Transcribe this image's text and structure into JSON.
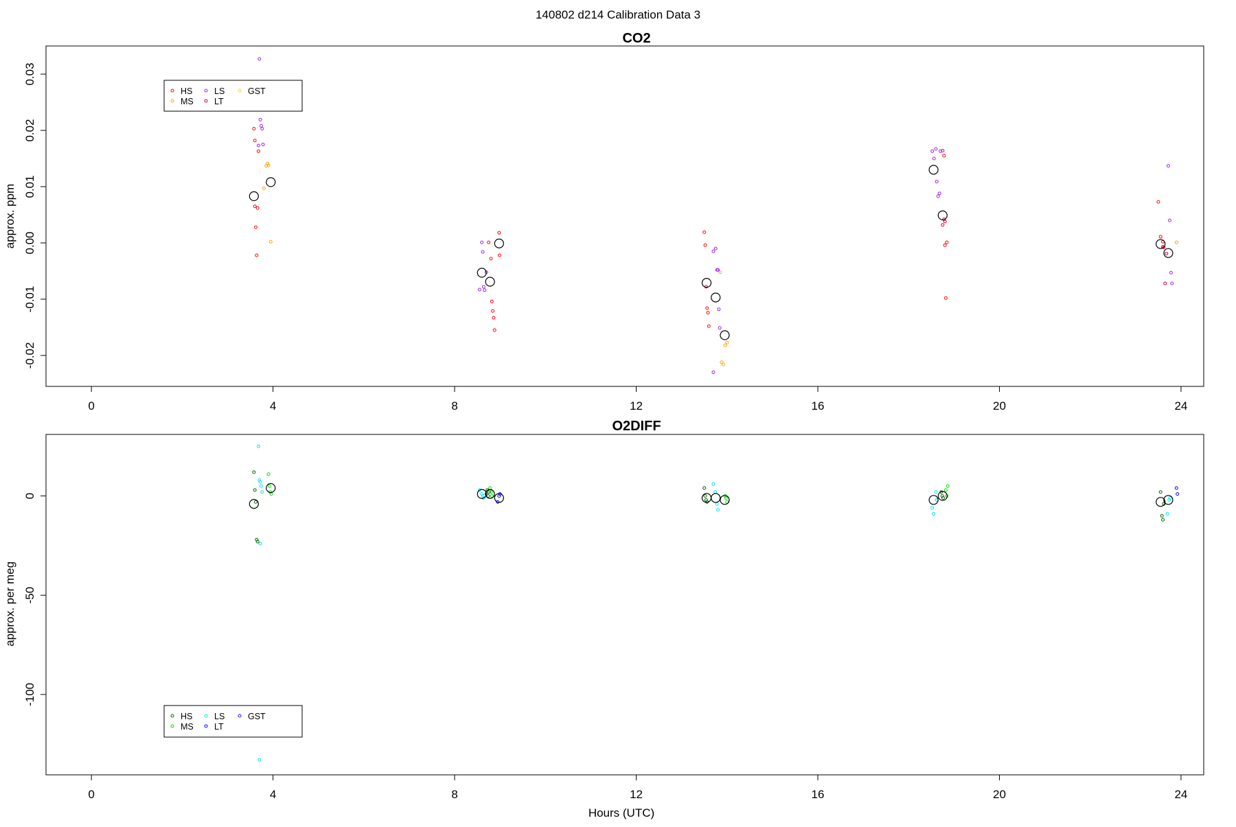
{
  "suptitle": "140802   d214   Calibration Data 3",
  "xlabel": "Hours (UTC)",
  "colors": {
    "co2": {
      "HS": "#ff0000",
      "MS": "#ffa500",
      "LS": "#a020f0",
      "LT": "#cc0033",
      "GST": "#ffd700",
      "mean": "#000000"
    },
    "o2": {
      "HS": "#006400",
      "MS": "#00dd00",
      "LS": "#00e5ee",
      "LT": "#0000ff",
      "GST": "#1a1aff",
      "mean": "#000000"
    }
  },
  "chart_data": [
    {
      "type": "scatter",
      "id": "co2",
      "title": "CO2",
      "ylabel": "approx. ppm",
      "xlim": [
        -1,
        24.5
      ],
      "ylim": [
        -0.0255,
        0.035
      ],
      "xticks": [
        "0",
        "4",
        "8",
        "12",
        "16",
        "20",
        "24"
      ],
      "yticks": [
        "-0.02",
        "-0.01",
        "0.00",
        "0.01",
        "0.02",
        "0.03"
      ],
      "legend": {
        "position": "top-left",
        "entries": [
          "HS",
          "MS",
          "LS",
          "LT",
          "GST"
        ]
      },
      "series": [
        {
          "name": "HS",
          "x": [
            3.58,
            3.6,
            3.62,
            3.64,
            3.66,
            3.68,
            3.6,
            8.75,
            8.8,
            8.82,
            8.84,
            8.86,
            8.88,
            8.98,
            8.99,
            13.5,
            13.52,
            13.54,
            13.56,
            13.58,
            13.6,
            18.75,
            18.78,
            18.8,
            18.82,
            18.84,
            23.5,
            23.55,
            23.6,
            23.62
          ],
          "y": [
            0.0203,
            0.0065,
            0.0028,
            -0.0022,
            0.0062,
            0.0163,
            0.0182,
            0.0001,
            -0.0028,
            -0.0104,
            -0.0121,
            -0.0133,
            -0.0155,
            0.0018,
            -0.0022,
            0.0019,
            -0.0004,
            -0.0078,
            -0.0116,
            -0.0124,
            -0.0148,
            0.0164,
            0.0155,
            -0.0004,
            -0.0098,
            0.0001,
            0.0073,
            0.0011,
            0.0002,
            -0.0008
          ]
        },
        {
          "name": "MS",
          "x": [
            3.8,
            3.85,
            3.88,
            3.9,
            3.95,
            13.85,
            13.88,
            13.92,
            13.96,
            14.0,
            23.9
          ],
          "y": [
            0.0097,
            0.0137,
            0.0141,
            0.0138,
            0.0002,
            -0.0052,
            -0.0212,
            -0.0216,
            -0.0182,
            -0.0177,
            0.0001
          ]
        },
        {
          "name": "LS",
          "x": [
            3.7,
            3.72,
            3.74,
            3.76,
            3.78,
            3.68,
            8.55,
            8.6,
            8.62,
            8.64,
            8.66,
            8.7,
            13.7,
            13.75,
            13.78,
            13.8,
            13.82,
            13.84,
            13.7,
            18.52,
            18.56,
            18.6,
            18.62,
            18.65,
            18.68,
            18.7,
            23.72,
            23.75,
            23.78,
            23.8
          ],
          "y": [
            0.0327,
            0.0219,
            0.0208,
            0.0203,
            0.0175,
            0.0173,
            -0.0083,
            0.0001,
            -0.0016,
            -0.0078,
            -0.0084,
            -0.0052,
            -0.0015,
            -0.001,
            -0.0048,
            -0.0048,
            -0.0118,
            -0.0151,
            -0.023,
            0.0163,
            0.015,
            0.0167,
            0.0109,
            0.0083,
            0.0088,
            0.0163,
            0.0137,
            0.004,
            -0.0053,
            -0.0072
          ]
        },
        {
          "name": "LT",
          "x": [
            18.75,
            18.78,
            18.8,
            23.6,
            23.65,
            23.68
          ],
          "y": [
            0.0032,
            0.0042,
            0.0038,
            -0.0007,
            -0.0072,
            -0.0019
          ]
        },
        {
          "name": "mean",
          "x": [
            3.58,
            3.95,
            8.6,
            8.78,
            8.98,
            13.55,
            13.75,
            13.95,
            18.55,
            18.75,
            23.55,
            23.72
          ],
          "y": [
            0.0083,
            0.0108,
            -0.0053,
            -0.0069,
            -0.0001,
            -0.0071,
            -0.0097,
            -0.0164,
            0.013,
            0.0049,
            -0.0002,
            -0.0018
          ]
        }
      ]
    },
    {
      "type": "scatter",
      "id": "o2",
      "title": "O2DIFF",
      "ylabel": "approx. per meg",
      "xlim": [
        -1,
        24.5
      ],
      "ylim": [
        -140.5,
        31
      ],
      "xticks": [
        "0",
        "4",
        "8",
        "12",
        "16",
        "20",
        "24"
      ],
      "yticks": [
        "-100",
        "-50",
        "0"
      ],
      "legend": {
        "position": "bottom-left",
        "entries": [
          "HS",
          "MS",
          "LS",
          "LT",
          "GST"
        ]
      },
      "series": [
        {
          "name": "HS",
          "x": [
            3.58,
            3.6,
            3.62,
            3.64,
            3.66,
            8.7,
            8.72,
            8.74,
            8.76,
            13.5,
            13.52,
            13.54,
            13.56,
            18.72,
            18.74,
            18.76,
            23.55,
            23.58,
            23.6,
            23.62
          ],
          "y": [
            12,
            3,
            -3,
            -22,
            -23,
            1,
            3,
            0,
            2,
            4,
            0,
            -2,
            -3,
            2,
            0,
            -1,
            2,
            -10,
            -12,
            -4
          ]
        },
        {
          "name": "MS",
          "x": [
            3.9,
            3.92,
            3.94,
            3.96,
            8.78,
            8.8,
            8.82,
            13.96,
            13.98,
            14.0,
            18.82,
            18.84,
            18.86
          ],
          "y": [
            11,
            5,
            2,
            1,
            4,
            2,
            0,
            0,
            -1,
            -3,
            3,
            0,
            5
          ]
        },
        {
          "name": "LS",
          "x": [
            3.68,
            3.7,
            3.72,
            3.74,
            3.76,
            3.72,
            3.7,
            8.55,
            8.6,
            8.62,
            8.64,
            13.7,
            13.74,
            13.78,
            13.8,
            18.52,
            18.55,
            18.6,
            18.62,
            23.7,
            23.74,
            23.76
          ],
          "y": [
            25,
            8,
            7,
            5,
            2,
            -24,
            -133,
            3,
            1,
            0,
            -1,
            6,
            2,
            -4,
            -7,
            -6,
            -9,
            2,
            -2,
            -9,
            -2,
            -1
          ]
        },
        {
          "name": "LT",
          "x": [
            8.95,
            8.98,
            9.0,
            23.9,
            23.92
          ],
          "y": [
            -3,
            0,
            1,
            4,
            1
          ]
        },
        {
          "name": "mean",
          "x": [
            3.58,
            3.95,
            8.6,
            8.78,
            8.98,
            13.55,
            13.75,
            13.95,
            18.55,
            18.75,
            23.55,
            23.72
          ],
          "y": [
            -4,
            4,
            1,
            1,
            -1,
            -1,
            -1,
            -2,
            -2,
            0,
            -3,
            -2
          ]
        }
      ]
    }
  ]
}
